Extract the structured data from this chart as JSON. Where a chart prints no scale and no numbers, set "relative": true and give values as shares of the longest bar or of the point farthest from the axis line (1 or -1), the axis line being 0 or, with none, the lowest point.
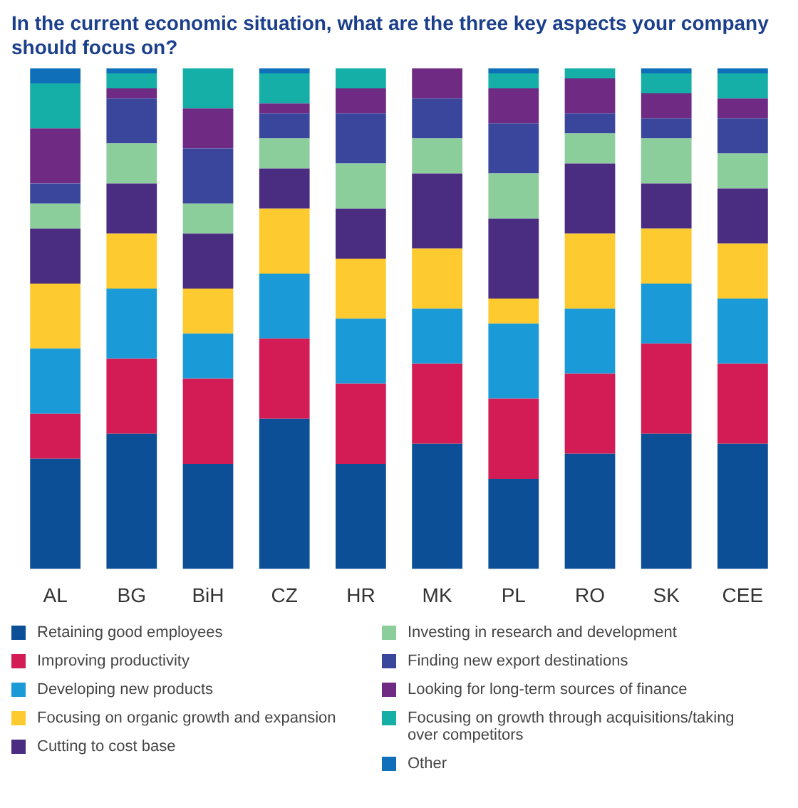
{
  "chart_data": {
    "type": "bar",
    "title": "In the current economic situation, what are the three key aspects your company should focus on?",
    "categories": [
      "AL",
      "BG",
      "BiH",
      "CZ",
      "HR",
      "MK",
      "PL",
      "RO",
      "SK",
      "CEE"
    ],
    "stacked": true,
    "relative": true,
    "legend": "bottom",
    "series": [
      {
        "name": "Retaining good employees",
        "color": "#0c4f97",
        "values": [
          0.22,
          0.27,
          0.21,
          0.3,
          0.21,
          0.25,
          0.18,
          0.23,
          0.27,
          0.25
        ]
      },
      {
        "name": "Improving productivity",
        "color": "#d31c56",
        "values": [
          0.09,
          0.15,
          0.17,
          0.16,
          0.16,
          0.16,
          0.16,
          0.16,
          0.18,
          0.16
        ]
      },
      {
        "name": "Developing new products",
        "color": "#1a9ad6",
        "values": [
          0.13,
          0.14,
          0.09,
          0.13,
          0.13,
          0.11,
          0.15,
          0.13,
          0.12,
          0.13
        ]
      },
      {
        "name": "Focusing on organic growth and expansion",
        "color": "#fdcb30",
        "values": [
          0.13,
          0.11,
          0.09,
          0.13,
          0.12,
          0.12,
          0.05,
          0.15,
          0.11,
          0.11
        ]
      },
      {
        "name": "Cutting to cost base",
        "color": "#4a2c80",
        "values": [
          0.11,
          0.1,
          0.11,
          0.08,
          0.1,
          0.15,
          0.16,
          0.14,
          0.09,
          0.11
        ]
      },
      {
        "name": "Investing in research and development",
        "color": "#8bcd9b",
        "values": [
          0.05,
          0.08,
          0.06,
          0.06,
          0.09,
          0.07,
          0.09,
          0.06,
          0.09,
          0.07
        ]
      },
      {
        "name": "Finding new export destinations",
        "color": "#39469c",
        "values": [
          0.04,
          0.09,
          0.11,
          0.05,
          0.1,
          0.08,
          0.1,
          0.04,
          0.04,
          0.07
        ]
      },
      {
        "name": "Looking for long-term sources of finance",
        "color": "#6f2a84",
        "values": [
          0.11,
          0.02,
          0.08,
          0.02,
          0.05,
          0.06,
          0.07,
          0.07,
          0.05,
          0.04
        ]
      },
      {
        "name": "Focusing on growth through acquisitions/taking over competitors",
        "color": "#15afa7",
        "values": [
          0.09,
          0.03,
          0.08,
          0.06,
          0.04,
          0,
          0.03,
          0.02,
          0.04,
          0.05
        ]
      },
      {
        "name": "Other",
        "color": "#0f6fb9",
        "values": [
          0.03,
          0.01,
          0,
          0.01,
          0,
          0,
          0.01,
          0,
          0.01,
          0.01
        ]
      }
    ]
  }
}
